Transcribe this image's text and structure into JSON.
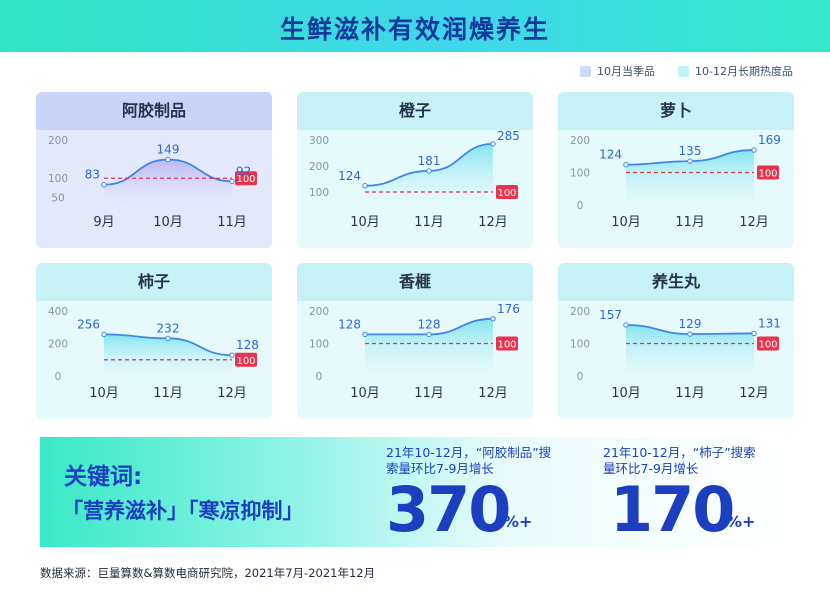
{
  "header": {
    "title": "生鲜滋补有效润燥养生"
  },
  "legend": [
    {
      "label": "10月当季品",
      "color": "#cfd9fa"
    },
    {
      "label": "10-12月长期热度品",
      "color": "#c4f3f7"
    }
  ],
  "colors": {
    "line": "#3f86e8",
    "baseline": "#e8334d",
    "label": "#2f66d9",
    "axis": "#8a94a6",
    "month": "#26334d"
  },
  "chart_data": [
    {
      "type": "area",
      "title": "阿胶制品",
      "group": "10月当季品",
      "categories": [
        "9月",
        "10月",
        "11月"
      ],
      "values": [
        83,
        149,
        92
      ],
      "yticks": [
        200,
        100,
        50
      ],
      "ylim": [
        30,
        200
      ],
      "baseline": 100
    },
    {
      "type": "area",
      "title": "橙子",
      "group": "10-12月长期热度品",
      "categories": [
        "10月",
        "11月",
        "12月"
      ],
      "values": [
        124,
        181,
        285
      ],
      "yticks": [
        300,
        200,
        100
      ],
      "ylim": [
        50,
        300
      ],
      "baseline": 100
    },
    {
      "type": "area",
      "title": "萝卜",
      "group": "10-12月长期热度品",
      "categories": [
        "10月",
        "11月",
        "12月"
      ],
      "values": [
        124,
        135,
        169
      ],
      "yticks": [
        200,
        100,
        0
      ],
      "ylim": [
        0,
        200
      ],
      "baseline": 100
    },
    {
      "type": "area",
      "title": "柿子",
      "group": "10-12月长期热度品",
      "categories": [
        "10月",
        "11月",
        "12月"
      ],
      "values": [
        256,
        232,
        128
      ],
      "yticks": [
        400,
        200,
        0
      ],
      "ylim": [
        0,
        400
      ],
      "baseline": 100
    },
    {
      "type": "area",
      "title": "香榧",
      "group": "10-12月长期热度品",
      "categories": [
        "10月",
        "11月",
        "12月"
      ],
      "values": [
        128,
        128,
        176
      ],
      "yticks": [
        200,
        100,
        0
      ],
      "ylim": [
        0,
        200
      ],
      "baseline": 100
    },
    {
      "type": "area",
      "title": "养生丸",
      "group": "10-12月长期热度品",
      "categories": [
        "10月",
        "11月",
        "12月"
      ],
      "values": [
        157,
        129,
        131
      ],
      "yticks": [
        200,
        100,
        0
      ],
      "ylim": [
        0,
        200
      ],
      "baseline": 100
    }
  ],
  "banner": {
    "keyword_label": "关键词:",
    "keywords": "「营养滋补」「寒凉抑制」",
    "stats": [
      {
        "desc_line1": "21年10-12月，“阿胶制品”搜",
        "desc_line2": "索量环比7-9月增长",
        "value": "370",
        "unit": "%+"
      },
      {
        "desc_line1": "21年10-12月，“柿子”搜索",
        "desc_line2": "量环比7-9月增长",
        "value": "170",
        "unit": "%+"
      }
    ]
  },
  "source": "数据来源：巨量算数&算数电商研究院，2021年7月-2021年12月"
}
